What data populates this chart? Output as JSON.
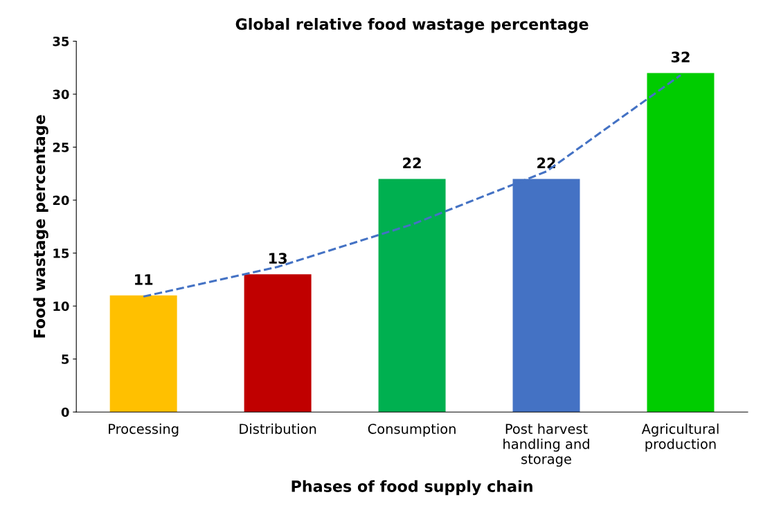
{
  "chart_data": {
    "type": "bar",
    "title": "Global relative food wastage percentage",
    "xlabel": "Phases of food supply chain",
    "ylabel": "Food wastage percentage",
    "categories": [
      "Processing",
      "Distribution",
      "Consumption",
      "Post harvest\nhandling and\nstorage",
      "Agricultural\nproduction"
    ],
    "series": [
      {
        "colors": [
          "#ffc000",
          "#c00000",
          "#00b050",
          "#4472c4",
          "#00cc00"
        ],
        "values": [
          11,
          13,
          22,
          22,
          32
        ],
        "value_labels": [
          "11",
          "13",
          "22",
          "22",
          "32"
        ]
      },
      {
        "type": "line",
        "color": "#4472c4",
        "line_style": "dashed",
        "marker": "none",
        "values": [
          10.9,
          13.7,
          17.7,
          22.7,
          31.8
        ]
      }
    ],
    "ylim": [
      0,
      35
    ],
    "yticks": [
      0,
      5,
      10,
      15,
      20,
      25,
      30,
      35
    ],
    "grid": false,
    "legend": false
  }
}
